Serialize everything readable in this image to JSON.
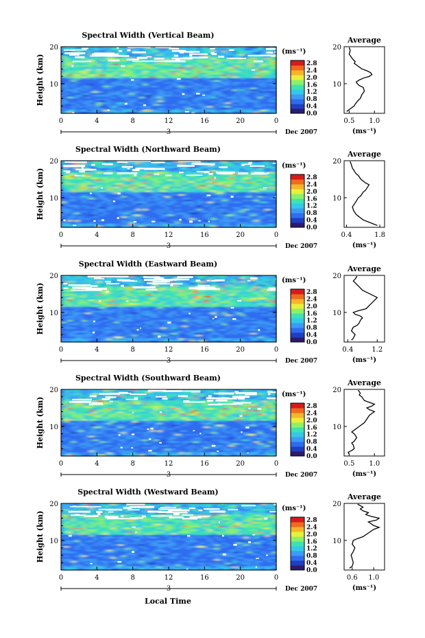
{
  "figure": {
    "xlabel_bottom": "Local Time",
    "date_label": "Dec 2007",
    "day_label": "3",
    "colorbar_unit": "(ms⁻¹)",
    "colorbar_ticks": [
      "2.8",
      "2.4",
      "2.0",
      "1.6",
      "1.2",
      "0.8",
      "0.4",
      "0.0"
    ],
    "colors": [
      "#2b1a6e",
      "#1f3fbf",
      "#2f6cf0",
      "#3d9bf5",
      "#34c9e8",
      "#3ee3b0",
      "#8ef06a",
      "#e8f03a",
      "#f7b52a",
      "#f06a1e",
      "#d61b1b"
    ]
  },
  "chart_data": [
    {
      "type": "heatmap",
      "title": "Spectral Width (Vertical Beam)",
      "xlabel": "",
      "ylabel": "Height (km)",
      "xlim": [
        0,
        24
      ],
      "ylim": [
        2,
        20
      ],
      "x_ticks": [
        "0",
        "4",
        "8",
        "12",
        "16",
        "20",
        "0"
      ],
      "y_ticks": [
        "10",
        "20"
      ],
      "average": {
        "title": "Average",
        "xlabel": "(ms⁻¹)",
        "x_ticks": [
          "0.5",
          "1.0"
        ],
        "xlim": [
          0.4,
          1.2
        ],
        "y_ticks": [
          "10",
          "20"
        ],
        "x": [
          0.45,
          0.5,
          0.55,
          0.6,
          0.62,
          0.65,
          0.68,
          0.72,
          0.75,
          0.8,
          0.78,
          0.7,
          0.66,
          0.64,
          0.7,
          0.78,
          0.9,
          0.95,
          0.92,
          0.85,
          0.75,
          0.7,
          0.65,
          0.6,
          0.62,
          0.58,
          0.55,
          0.5,
          0.52,
          0.5
        ],
        "y": [
          2.5,
          3,
          3.5,
          4,
          4.5,
          5,
          5.5,
          6,
          7,
          8,
          9,
          9.5,
          10,
          10.5,
          11,
          11.5,
          12,
          12.5,
          13,
          13.5,
          14,
          14.5,
          15,
          15.5,
          16,
          16.5,
          17,
          18,
          19,
          19.8
        ]
      }
    },
    {
      "type": "heatmap",
      "title": "Spectral Width (Northward Beam)",
      "xlabel": "",
      "ylabel": "Height (km)",
      "xlim": [
        0,
        24
      ],
      "ylim": [
        2,
        20
      ],
      "x_ticks": [
        "0",
        "4",
        "8",
        "12",
        "16",
        "20",
        "0"
      ],
      "y_ticks": [
        "10",
        "20"
      ],
      "average": {
        "title": "Average",
        "xlabel": "(ms⁻¹)",
        "x_ticks": [
          "0.4",
          "1.8"
        ],
        "xlim": [
          0.3,
          2.0
        ],
        "y_ticks": [
          "10",
          "20"
        ],
        "x": [
          1.7,
          1.5,
          1.3,
          1.1,
          1.0,
          0.9,
          0.8,
          0.75,
          0.7,
          0.65,
          0.7,
          0.8,
          0.9,
          1.0,
          1.05,
          1.1,
          1.2,
          1.3,
          1.35,
          1.2,
          1.0,
          0.9,
          0.8,
          0.75,
          0.7,
          0.65,
          0.6,
          0.55
        ],
        "y": [
          2.5,
          3,
          3.5,
          4,
          4.5,
          5,
          5.5,
          6,
          6.5,
          7.5,
          8,
          9,
          10,
          10.5,
          11,
          11.5,
          12,
          13,
          13.5,
          14,
          15,
          16,
          16.5,
          17,
          17.5,
          18,
          19,
          19.8
        ]
      }
    },
    {
      "type": "heatmap",
      "title": "Spectral Width (Eastward Beam)",
      "xlabel": "",
      "ylabel": "Height (km)",
      "xlim": [
        0,
        24
      ],
      "ylim": [
        2,
        20
      ],
      "x_ticks": [
        "0",
        "4",
        "8",
        "12",
        "16",
        "20",
        "0"
      ],
      "y_ticks": [
        "10",
        "20"
      ],
      "average": {
        "title": "Average",
        "xlabel": "(ms⁻¹)",
        "x_ticks": [
          "0.4",
          "1.2"
        ],
        "xlim": [
          0.3,
          1.4
        ],
        "y_ticks": [
          "10",
          "20"
        ],
        "x": [
          0.5,
          0.55,
          0.6,
          0.55,
          0.5,
          0.55,
          0.65,
          0.7,
          0.75,
          0.8,
          0.75,
          0.6,
          0.55,
          0.7,
          0.9,
          1.0,
          1.1,
          1.2,
          1.1,
          1.0,
          0.9,
          0.8,
          0.7,
          0.6,
          0.55,
          0.6,
          0.65
        ],
        "y": [
          2.5,
          3,
          4,
          4.5,
          5,
          6,
          6.5,
          7,
          8,
          8.5,
          9,
          9.5,
          10,
          10.5,
          11,
          12,
          13,
          14,
          14.5,
          15,
          15.5,
          16,
          17,
          18,
          18.5,
          19,
          19.8
        ]
      }
    },
    {
      "type": "heatmap",
      "title": "Spectral Width (Southward Beam)",
      "xlabel": "",
      "ylabel": "Height (km)",
      "xlim": [
        0,
        24
      ],
      "ylim": [
        2,
        20
      ],
      "x_ticks": [
        "0",
        "4",
        "8",
        "12",
        "16",
        "20",
        "0"
      ],
      "y_ticks": [
        "10",
        "20"
      ],
      "average": {
        "title": "Average",
        "xlabel": "(ms⁻¹)",
        "x_ticks": [
          "0.5",
          "1.0"
        ],
        "xlim": [
          0.4,
          1.2
        ],
        "y_ticks": [
          "10",
          "20"
        ],
        "x": [
          0.5,
          0.48,
          0.55,
          0.6,
          0.58,
          0.55,
          0.6,
          0.65,
          0.6,
          0.55,
          0.6,
          0.7,
          0.8,
          0.85,
          0.9,
          0.95,
          1.0,
          0.9,
          0.85,
          0.95,
          1.0,
          0.9,
          0.8,
          0.75,
          0.7,
          0.72,
          0.68
        ],
        "y": [
          2.5,
          3,
          3.5,
          4,
          5,
          5.5,
          6,
          7,
          8,
          8.5,
          9,
          10,
          11,
          12,
          13,
          13.5,
          14,
          14.5,
          15,
          15.5,
          16,
          16.5,
          17,
          18,
          18.5,
          19,
          19.8
        ]
      }
    },
    {
      "type": "heatmap",
      "title": "Spectral Width (Westward Beam)",
      "xlabel": "Local Time",
      "ylabel": "Height (km)",
      "xlim": [
        0,
        24
      ],
      "ylim": [
        2,
        20
      ],
      "x_ticks": [
        "0",
        "4",
        "8",
        "12",
        "16",
        "20",
        "0"
      ],
      "y_ticks": [
        "10",
        "20"
      ],
      "average": {
        "title": "Average",
        "xlabel": "(ms⁻¹)",
        "x_ticks": [
          "0.6",
          "1.0"
        ],
        "xlim": [
          0.45,
          1.2
        ],
        "y_ticks": [
          "10",
          "20"
        ],
        "x": [
          0.55,
          0.6,
          0.62,
          0.6,
          0.58,
          0.62,
          0.65,
          0.6,
          0.62,
          0.7,
          0.8,
          0.9,
          1.0,
          1.1,
          1.0,
          0.95,
          0.9,
          1.05,
          1.1,
          0.95,
          0.85,
          0.9,
          0.8,
          0.75,
          0.8,
          0.7
        ],
        "y": [
          2.5,
          3,
          4,
          5,
          6,
          7,
          8,
          9,
          10,
          10.5,
          11,
          12,
          13,
          13.5,
          14,
          14.5,
          15,
          15.5,
          16,
          16.5,
          17,
          17.5,
          18,
          18.5,
          19,
          19.8
        ]
      }
    }
  ]
}
